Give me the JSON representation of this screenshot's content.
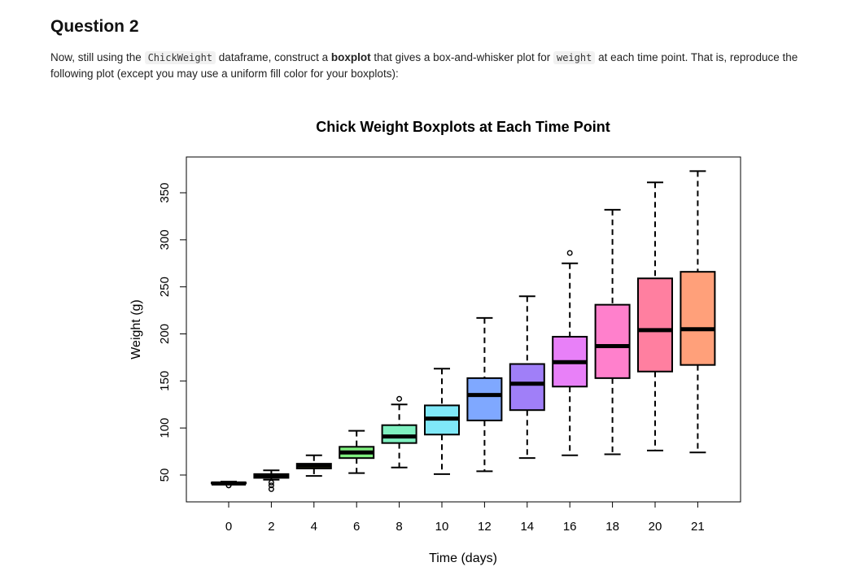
{
  "question": {
    "title": "Question 2",
    "text_1": "Now, still using the ",
    "code_1": "ChickWeight",
    "text_2": " dataframe, construct a ",
    "bold_1": "boxplot",
    "text_3": " that gives a box-and-whisker plot for ",
    "code_2": "weight",
    "text_4": " at each time point. That is, reproduce the following plot (except you may use a uniform fill color for your boxplots):"
  },
  "chart_data": {
    "type": "boxplot",
    "title": "Chick Weight Boxplots at Each Time Point",
    "xlabel": "Time (days)",
    "ylabel": "Weight (g)",
    "ylim": [
      30,
      390
    ],
    "yticks": [
      50,
      100,
      150,
      200,
      250,
      300,
      350
    ],
    "grid": false,
    "categories": [
      "0",
      "2",
      "4",
      "6",
      "8",
      "10",
      "12",
      "14",
      "16",
      "18",
      "20",
      "21"
    ],
    "boxes": [
      {
        "label": "0",
        "min": 41,
        "q1": 41,
        "median": 41,
        "q3": 42,
        "max": 43,
        "outliers": [
          39,
          39
        ],
        "color": "#ff7f7f"
      },
      {
        "label": "2",
        "min": 45,
        "q1": 47,
        "median": 49,
        "q3": 51,
        "max": 55,
        "outliers": [
          35,
          39,
          42
        ],
        "color": "#ff9b5c"
      },
      {
        "label": "4",
        "min": 49,
        "q1": 57,
        "median": 60,
        "q3": 62,
        "max": 71,
        "outliers": [],
        "color": "#e0e050"
      },
      {
        "label": "6",
        "min": 52,
        "q1": 68,
        "median": 74,
        "q3": 80,
        "max": 97,
        "outliers": [],
        "color": "#7fef7f"
      },
      {
        "label": "8",
        "min": 58,
        "q1": 84,
        "median": 91,
        "q3": 103,
        "max": 125,
        "outliers": [
          131
        ],
        "color": "#7ff0c0"
      },
      {
        "label": "10",
        "min": 51,
        "q1": 93,
        "median": 110,
        "q3": 124,
        "max": 163,
        "outliers": [],
        "color": "#7fe8f8"
      },
      {
        "label": "12",
        "min": 54,
        "q1": 108,
        "median": 135,
        "q3": 153,
        "max": 217,
        "outliers": [],
        "color": "#7fa8ff"
      },
      {
        "label": "14",
        "min": 68,
        "q1": 119,
        "median": 147,
        "q3": 168,
        "max": 240,
        "outliers": [],
        "color": "#a07ff8"
      },
      {
        "label": "16",
        "min": 71,
        "q1": 144,
        "median": 170,
        "q3": 197,
        "max": 275,
        "outliers": [
          286
        ],
        "color": "#e880f8"
      },
      {
        "label": "18",
        "min": 72,
        "q1": 153,
        "median": 187,
        "q3": 231,
        "max": 332,
        "outliers": [],
        "color": "#ff80cc"
      },
      {
        "label": "20",
        "min": 76,
        "q1": 160,
        "median": 204,
        "q3": 259,
        "max": 361,
        "outliers": [],
        "color": "#ff7fa0"
      },
      {
        "label": "21",
        "min": 74,
        "q1": 167,
        "median": 205,
        "q3": 266,
        "max": 373,
        "outliers": [],
        "color": "#ffa07a"
      }
    ]
  }
}
